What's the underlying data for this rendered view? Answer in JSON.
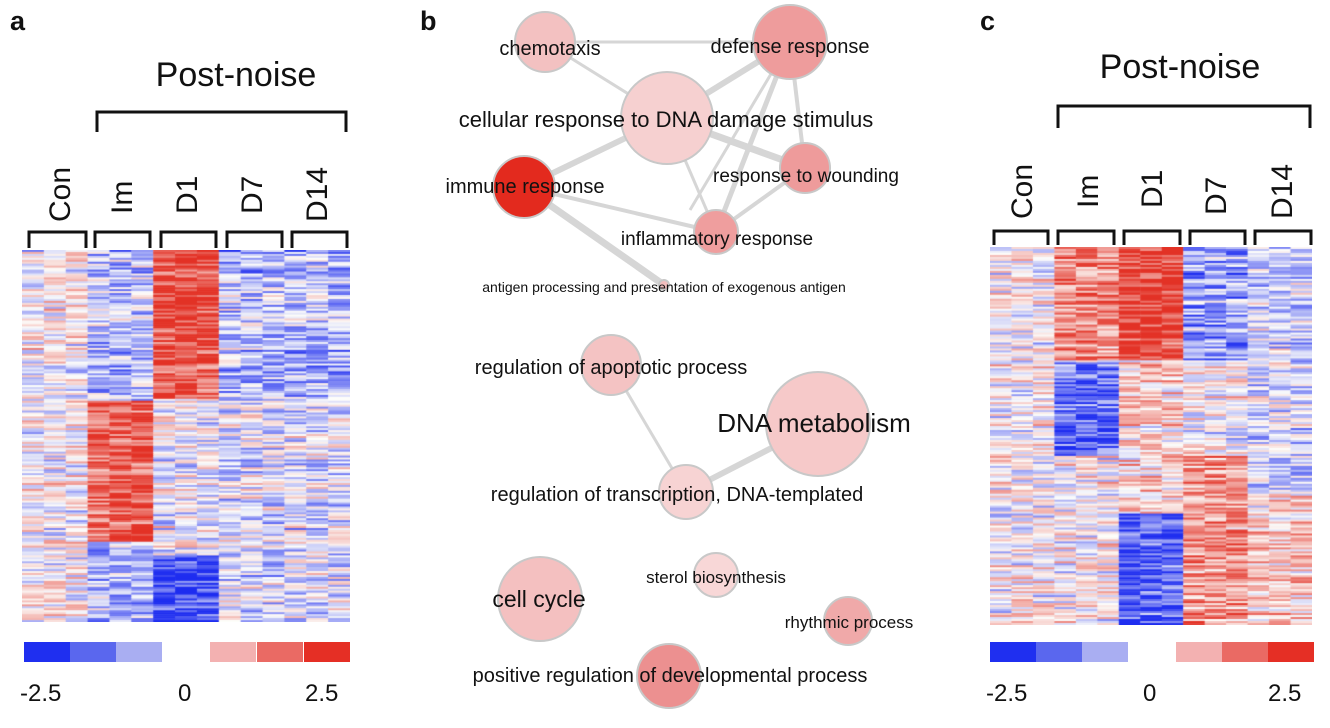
{
  "panel_a": {
    "letter": "a",
    "title": "Post-noise",
    "groups": [
      "Con",
      "Im",
      "D1",
      "D7",
      "D14"
    ],
    "scale": {
      "min_label": "-2.5",
      "mid_label": "0",
      "max_label": "2.5"
    },
    "colors": [
      "#1f2ff0",
      "#5a67ee",
      "#a9aef2",
      "#f3b1b1",
      "#ea6a64",
      "#e52f25"
    ]
  },
  "panel_b": {
    "letter": "b",
    "nodes": [
      {
        "id": "chemotaxis",
        "label": "chemotaxis"
      },
      {
        "id": "defense",
        "label": "defense response"
      },
      {
        "id": "dna_damage",
        "label": "cellular response to DNA damage stimulus"
      },
      {
        "id": "immune",
        "label": "immune response"
      },
      {
        "id": "wounding",
        "label": "response to wounding"
      },
      {
        "id": "inflammatory",
        "label": "inflammatory response"
      },
      {
        "id": "antigen",
        "label": "antigen processing and presentation of exogenous antigen"
      },
      {
        "id": "apoptotic",
        "label": "regulation of apoptotic process"
      },
      {
        "id": "dna_metabolism",
        "label": "DNA metabolism"
      },
      {
        "id": "transcription",
        "label": "regulation of transcription, DNA-templated"
      },
      {
        "id": "cell_cycle",
        "label": "cell cycle"
      },
      {
        "id": "sterol",
        "label": "sterol biosynthesis"
      },
      {
        "id": "rhythmic",
        "label": "rhythmic process"
      },
      {
        "id": "developmental",
        "label": "positive regulation of developmental process"
      }
    ]
  },
  "panel_c": {
    "letter": "c",
    "title": "Post-noise",
    "groups": [
      "Con",
      "Im",
      "D1",
      "D7",
      "D14"
    ],
    "scale": {
      "min_label": "-2.5",
      "mid_label": "0",
      "max_label": "2.5"
    }
  }
}
